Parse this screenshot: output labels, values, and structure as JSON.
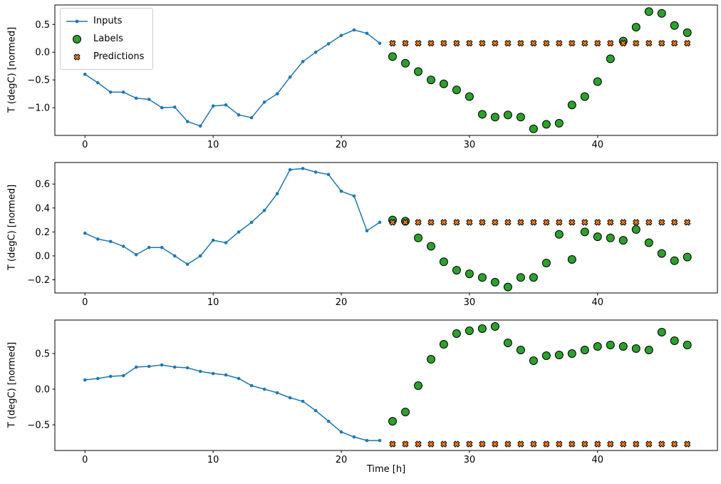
{
  "figure": {
    "xlabel": "Time [h]",
    "ylabel": "T (degC) [normed]",
    "colors": {
      "inputs": "#1f77b4",
      "labels": "#2ca02c",
      "predictions": "#ff7f0e",
      "marker_edge": "#000000",
      "axes_frame": "#000000"
    },
    "legend": [
      {
        "label": "Inputs",
        "marker": "line-dot"
      },
      {
        "label": "Labels",
        "marker": "circle"
      },
      {
        "label": "Predictions",
        "marker": "x"
      }
    ]
  },
  "chart_data": [
    {
      "type": "line",
      "title": "",
      "xlabel": "",
      "ylabel": "T (degC) [normed]",
      "xlim": [
        -2.35,
        49.35
      ],
      "ylim": [
        -1.5,
        0.85
      ],
      "x_ticks": [
        0,
        10,
        20,
        30,
        40
      ],
      "y_ticks": [
        0.5,
        0.0,
        -0.5,
        -1.0
      ],
      "grid": false,
      "legend_position": "upper left",
      "series": [
        {
          "name": "Inputs",
          "type": "line",
          "x": [
            0,
            1,
            2,
            3,
            4,
            5,
            6,
            7,
            8,
            9,
            10,
            11,
            12,
            13,
            14,
            15,
            16,
            17,
            18,
            19,
            20,
            21,
            22,
            23
          ],
          "values": [
            -0.4,
            -0.55,
            -0.72,
            -0.72,
            -0.83,
            -0.85,
            -1.0,
            -0.99,
            -1.25,
            -1.33,
            -0.97,
            -0.95,
            -1.13,
            -1.18,
            -0.9,
            -0.75,
            -0.45,
            -0.17,
            0.0,
            0.15,
            0.3,
            0.4,
            0.34,
            0.16
          ]
        },
        {
          "name": "Labels",
          "type": "scatter-circle",
          "x": [
            24,
            25,
            26,
            27,
            28,
            29,
            30,
            31,
            32,
            33,
            34,
            35,
            36,
            37,
            38,
            39,
            40,
            41,
            42,
            43,
            44,
            45,
            46,
            47
          ],
          "values": [
            -0.08,
            -0.2,
            -0.35,
            -0.5,
            -0.57,
            -0.68,
            -0.8,
            -1.12,
            -1.17,
            -1.13,
            -1.17,
            -1.38,
            -1.3,
            -1.28,
            -0.95,
            -0.8,
            -0.53,
            -0.12,
            0.2,
            0.45,
            0.73,
            0.7,
            0.48,
            0.35
          ]
        },
        {
          "name": "Predictions",
          "type": "scatter-x",
          "x": [
            24,
            25,
            26,
            27,
            28,
            29,
            30,
            31,
            32,
            33,
            34,
            35,
            36,
            37,
            38,
            39,
            40,
            41,
            42,
            43,
            44,
            45,
            46,
            47
          ],
          "values": [
            0.16,
            0.16,
            0.16,
            0.16,
            0.16,
            0.16,
            0.16,
            0.16,
            0.16,
            0.16,
            0.16,
            0.16,
            0.16,
            0.16,
            0.16,
            0.16,
            0.16,
            0.16,
            0.16,
            0.16,
            0.16,
            0.16,
            0.16,
            0.16
          ]
        }
      ]
    },
    {
      "type": "line",
      "title": "",
      "xlabel": "",
      "ylabel": "T (degC) [normed]",
      "xlim": [
        -2.35,
        49.35
      ],
      "ylim": [
        -0.31,
        0.78
      ],
      "x_ticks": [
        0,
        10,
        20,
        30,
        40
      ],
      "y_ticks": [
        0.6,
        0.4,
        0.2,
        0.0,
        -0.2
      ],
      "grid": false,
      "series": [
        {
          "name": "Inputs",
          "type": "line",
          "x": [
            0,
            1,
            2,
            3,
            4,
            5,
            6,
            7,
            8,
            9,
            10,
            11,
            12,
            13,
            14,
            15,
            16,
            17,
            18,
            19,
            20,
            21,
            22,
            23
          ],
          "values": [
            0.19,
            0.14,
            0.12,
            0.08,
            0.01,
            0.07,
            0.07,
            0.0,
            -0.07,
            0.0,
            0.13,
            0.11,
            0.2,
            0.28,
            0.38,
            0.52,
            0.72,
            0.73,
            0.7,
            0.68,
            0.54,
            0.5,
            0.21,
            0.28
          ]
        },
        {
          "name": "Labels",
          "type": "scatter-circle",
          "x": [
            24,
            25,
            26,
            27,
            28,
            29,
            30,
            31,
            32,
            33,
            34,
            35,
            36,
            37,
            38,
            39,
            40,
            41,
            42,
            43,
            44,
            45,
            46,
            47
          ],
          "values": [
            0.3,
            0.29,
            0.15,
            0.08,
            -0.05,
            -0.12,
            -0.15,
            -0.18,
            -0.22,
            -0.26,
            -0.18,
            -0.18,
            -0.06,
            0.18,
            -0.03,
            0.2,
            0.16,
            0.15,
            0.13,
            0.22,
            0.11,
            0.02,
            -0.04,
            -0.01
          ]
        },
        {
          "name": "Predictions",
          "type": "scatter-x",
          "x": [
            24,
            25,
            26,
            27,
            28,
            29,
            30,
            31,
            32,
            33,
            34,
            35,
            36,
            37,
            38,
            39,
            40,
            41,
            42,
            43,
            44,
            45,
            46,
            47
          ],
          "values": [
            0.28,
            0.28,
            0.28,
            0.28,
            0.28,
            0.28,
            0.28,
            0.28,
            0.28,
            0.28,
            0.28,
            0.28,
            0.28,
            0.28,
            0.28,
            0.28,
            0.28,
            0.28,
            0.28,
            0.28,
            0.28,
            0.28,
            0.28,
            0.28
          ]
        }
      ]
    },
    {
      "type": "line",
      "title": "",
      "xlabel": "Time [h]",
      "ylabel": "T (degC) [normed]",
      "xlim": [
        -2.35,
        49.35
      ],
      "ylim": [
        -0.86,
        0.97
      ],
      "x_ticks": [
        0,
        10,
        20,
        30,
        40
      ],
      "y_ticks": [
        0.5,
        0.0,
        -0.5
      ],
      "grid": false,
      "series": [
        {
          "name": "Inputs",
          "type": "line",
          "x": [
            0,
            1,
            2,
            3,
            4,
            5,
            6,
            7,
            8,
            9,
            10,
            11,
            12,
            13,
            14,
            15,
            16,
            17,
            18,
            19,
            20,
            21,
            22,
            23
          ],
          "values": [
            0.13,
            0.15,
            0.18,
            0.19,
            0.31,
            0.32,
            0.34,
            0.31,
            0.3,
            0.25,
            0.22,
            0.2,
            0.15,
            0.05,
            0.0,
            -0.05,
            -0.12,
            -0.17,
            -0.3,
            -0.45,
            -0.6,
            -0.67,
            -0.72,
            -0.72
          ]
        },
        {
          "name": "Labels",
          "type": "scatter-circle",
          "x": [
            24,
            25,
            26,
            27,
            28,
            29,
            30,
            31,
            32,
            33,
            34,
            35,
            36,
            37,
            38,
            39,
            40,
            41,
            42,
            43,
            44,
            45,
            46,
            47
          ],
          "values": [
            -0.45,
            -0.32,
            0.05,
            0.42,
            0.63,
            0.78,
            0.82,
            0.85,
            0.88,
            0.65,
            0.55,
            0.4,
            0.47,
            0.48,
            0.5,
            0.55,
            0.6,
            0.62,
            0.6,
            0.57,
            0.55,
            0.8,
            0.68,
            0.62
          ]
        },
        {
          "name": "Predictions",
          "type": "scatter-x",
          "x": [
            24,
            25,
            26,
            27,
            28,
            29,
            30,
            31,
            32,
            33,
            34,
            35,
            36,
            37,
            38,
            39,
            40,
            41,
            42,
            43,
            44,
            45,
            46,
            47
          ],
          "values": [
            -0.77,
            -0.77,
            -0.77,
            -0.77,
            -0.77,
            -0.77,
            -0.77,
            -0.77,
            -0.77,
            -0.77,
            -0.77,
            -0.77,
            -0.77,
            -0.77,
            -0.77,
            -0.77,
            -0.77,
            -0.77,
            -0.77,
            -0.77,
            -0.77,
            -0.77,
            -0.77,
            -0.77
          ]
        }
      ]
    }
  ]
}
